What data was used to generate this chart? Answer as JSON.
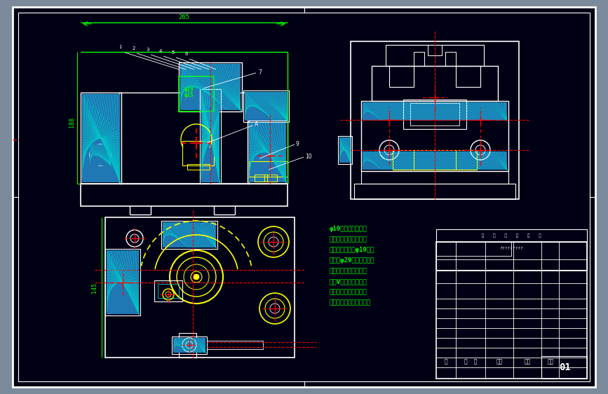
{
  "bg_color": "#000014",
  "outer_bg": "#7a8a9a",
  "white": "#ffffff",
  "green": "#00ff00",
  "red": "#ff0000",
  "yellow": "#ffff00",
  "cyan": "#00cccc",
  "dark_cyan": "#008888",
  "description_lines": [
    "φ19孔加工钻床夹具",
    "本夹具用于在立式钻床",
    "上加工变速叉的φ19孔。",
    "工件以φ29外圆及端面和",
    "叉口外侧为定为基准，",
    "用过V形块，支承板挡",
    "销实现完全定位，适用",
    "螺旋压紧机构夹紧工作。"
  ],
  "page_number": "01"
}
